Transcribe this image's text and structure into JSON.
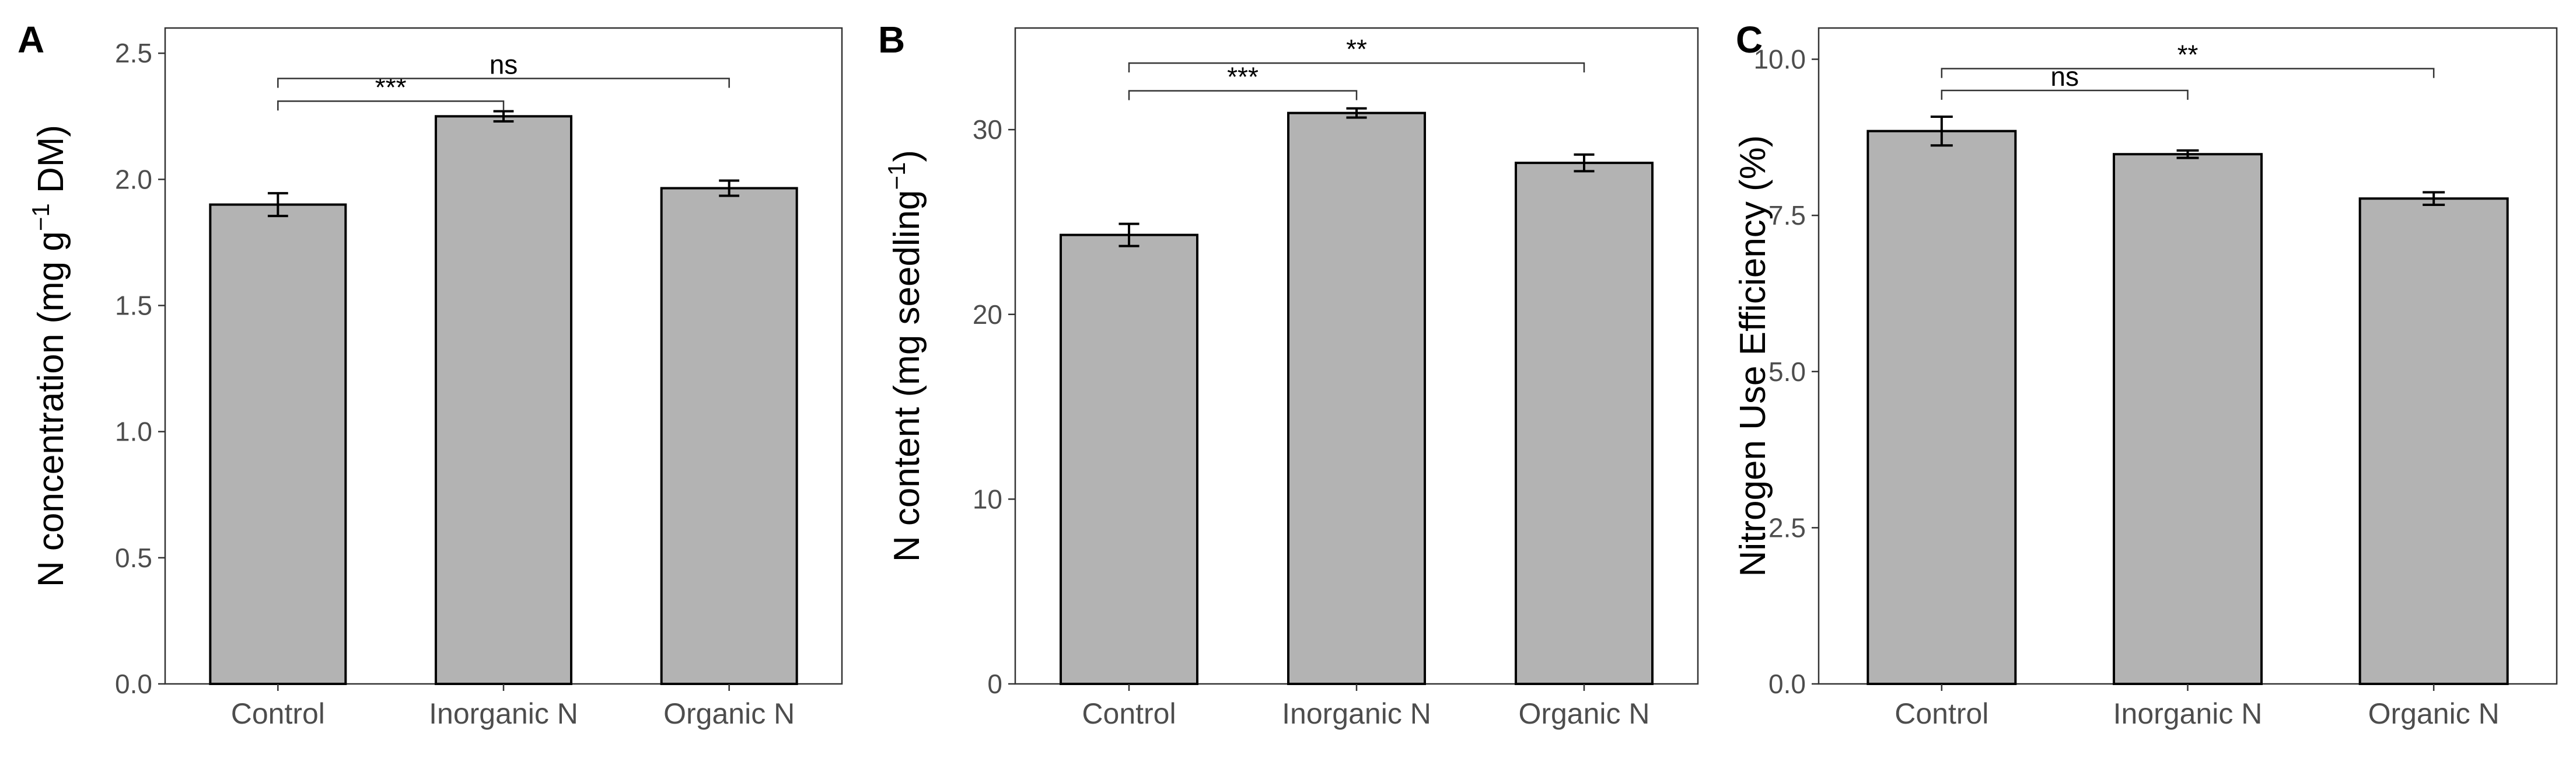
{
  "chart_data": [
    {
      "type": "bar",
      "panel_label": "A",
      "categories": [
        "Control",
        "Inorganic N",
        "Organic N"
      ],
      "values": [
        1.9,
        2.25,
        1.965
      ],
      "errors": [
        0.045,
        0.02,
        0.03
      ],
      "ylabel_parts": [
        "N concentration (mg g",
        "−1",
        " DM)"
      ],
      "ylim": [
        0,
        2.6
      ],
      "yticks": [
        0,
        0.5,
        1.0,
        1.5,
        2.0,
        2.5
      ],
      "ytick_labels": [
        "0.0",
        "0.5",
        "1.0",
        "1.5",
        "2.0",
        "2.5"
      ],
      "significance": [
        {
          "from": 0,
          "to": 1,
          "label": "***",
          "y": 2.31
        },
        {
          "from": 0,
          "to": 2,
          "label": "ns",
          "y": 2.4
        }
      ]
    },
    {
      "type": "bar",
      "panel_label": "B",
      "categories": [
        "Control",
        "Inorganic N",
        "Organic N"
      ],
      "values": [
        24.3,
        30.9,
        28.2
      ],
      "errors": [
        0.6,
        0.25,
        0.45
      ],
      "ylabel_parts": [
        "N content (mg seedling",
        "−1",
        ")"
      ],
      "ylim": [
        0,
        35.5
      ],
      "yticks": [
        0,
        10,
        20,
        30
      ],
      "ytick_labels": [
        "0",
        "10",
        "20",
        "30"
      ],
      "significance": [
        {
          "from": 0,
          "to": 1,
          "label": "***",
          "y": 32.1
        },
        {
          "from": 0,
          "to": 2,
          "label": "**",
          "y": 33.6
        }
      ]
    },
    {
      "type": "bar",
      "panel_label": "C",
      "categories": [
        "Control",
        "Inorganic N",
        "Organic N"
      ],
      "values": [
        8.85,
        8.48,
        7.77
      ],
      "errors": [
        0.23,
        0.06,
        0.1
      ],
      "ylabel_parts": [
        "Nitrogen Use Efficiency (%)"
      ],
      "ylim": [
        0,
        10.5
      ],
      "yticks": [
        0,
        2.5,
        5.0,
        7.5,
        10.0
      ],
      "ytick_labels": [
        "0.0",
        "2.5",
        "5.0",
        "7.5",
        "10.0"
      ],
      "significance": [
        {
          "from": 0,
          "to": 1,
          "label": "ns",
          "y": 9.5
        },
        {
          "from": 0,
          "to": 2,
          "label": "**",
          "y": 9.85
        }
      ]
    }
  ]
}
